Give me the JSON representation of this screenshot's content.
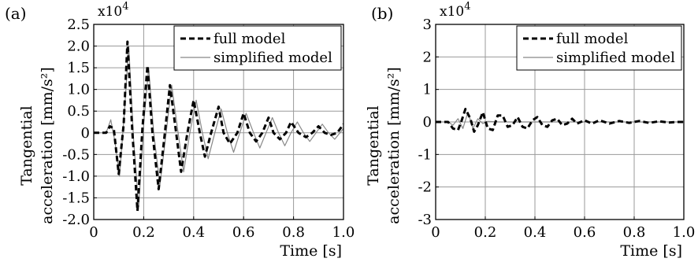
{
  "chart_data": [
    {
      "panel_label": "(a)",
      "type": "line",
      "xlabel": "Time  [s]",
      "ylabel_line1": "Tangential",
      "ylabel_line2": "acceleration  [mm/s²]",
      "multiplier": "x10",
      "multiplier_exp": "4",
      "xlim": [
        0,
        1.0
      ],
      "ylim": [
        -2.0,
        2.5
      ],
      "xticks": [
        0,
        0.2,
        0.4,
        0.6,
        0.8,
        1.0
      ],
      "xtick_labels": [
        "0",
        "0.2",
        "0.4",
        "0.6",
        "0.8",
        "1.0"
      ],
      "yticks": [
        -2.0,
        -1.5,
        -1.0,
        -0.5,
        0,
        0.5,
        1.0,
        1.5,
        2.0,
        2.5
      ],
      "ytick_labels": [
        "-2.0",
        "-1.5",
        "-1.0",
        "-0.5",
        "0",
        "0.5",
        "1.0",
        "1.5",
        "2.0",
        "2.5"
      ],
      "grid": true,
      "legend_position": "top-right",
      "series": [
        {
          "name": "full model",
          "style": "dashed",
          "color": "#000000",
          "x": [
            0,
            0.05,
            0.065,
            0.08,
            0.1,
            0.12,
            0.135,
            0.155,
            0.175,
            0.195,
            0.215,
            0.235,
            0.26,
            0.285,
            0.305,
            0.33,
            0.35,
            0.375,
            0.4,
            0.425,
            0.445,
            0.47,
            0.5,
            0.52,
            0.545,
            0.575,
            0.6,
            0.625,
            0.65,
            0.675,
            0.7,
            0.72,
            0.745,
            0.77,
            0.79,
            0.82,
            0.85,
            0.875,
            0.9,
            0.925,
            0.95,
            0.975,
            1.0
          ],
          "y": [
            0,
            0,
            0.15,
            0.1,
            -0.95,
            0.2,
            2.1,
            0.0,
            -1.8,
            0.1,
            1.55,
            0.0,
            -1.3,
            0.0,
            1.1,
            0.0,
            -0.9,
            0.0,
            0.75,
            0.0,
            -0.55,
            0.0,
            0.6,
            0.0,
            -0.25,
            0.0,
            0.45,
            0.0,
            -0.2,
            0.0,
            0.35,
            0.0,
            -0.15,
            0.0,
            0.25,
            0.0,
            -0.1,
            0.0,
            0.15,
            0.0,
            -0.05,
            0.0,
            0.2
          ]
        },
        {
          "name": "simplified model",
          "style": "solid",
          "color": "#888888",
          "x": [
            0,
            0.05,
            0.068,
            0.085,
            0.103,
            0.123,
            0.14,
            0.16,
            0.18,
            0.2,
            0.22,
            0.24,
            0.265,
            0.29,
            0.312,
            0.338,
            0.36,
            0.385,
            0.41,
            0.435,
            0.458,
            0.485,
            0.51,
            0.535,
            0.56,
            0.585,
            0.61,
            0.64,
            0.665,
            0.69,
            0.715,
            0.74,
            0.765,
            0.79,
            0.815,
            0.84,
            0.865,
            0.89,
            0.915,
            0.94,
            0.965,
            1.0
          ],
          "y": [
            0,
            0,
            0.3,
            -0.2,
            -1.0,
            0.5,
            2.0,
            -0.2,
            -1.7,
            0.2,
            1.5,
            0.0,
            -1.2,
            0.0,
            1.1,
            0.0,
            -0.9,
            0.0,
            0.75,
            0.0,
            -0.6,
            0.0,
            0.55,
            0.0,
            -0.45,
            0.0,
            0.45,
            0.0,
            -0.35,
            0.0,
            0.35,
            0.0,
            -0.3,
            0.0,
            0.25,
            0.0,
            -0.2,
            0.0,
            0.2,
            0.0,
            -0.15,
            0.1
          ]
        }
      ]
    },
    {
      "panel_label": "(b)",
      "type": "line",
      "xlabel": "Time  [s]",
      "ylabel_line1": "Tangential",
      "ylabel_line2": "acceleration  [mm/s²]",
      "multiplier": "x10",
      "multiplier_exp": "4",
      "xlim": [
        0,
        1.0
      ],
      "ylim": [
        -3,
        3
      ],
      "xticks": [
        0,
        0.2,
        0.4,
        0.6,
        0.8,
        1.0
      ],
      "xtick_labels": [
        "0",
        "0.2",
        "0.4",
        "0.6",
        "0.8",
        "1.0"
      ],
      "yticks": [
        -3,
        -2,
        -1,
        0,
        1,
        2,
        3
      ],
      "ytick_labels": [
        "-3",
        "-2",
        "-1",
        "0",
        "1",
        "2",
        "3"
      ],
      "grid": true,
      "legend_position": "top-right",
      "series": [
        {
          "name": "full model",
          "style": "dashed",
          "color": "#000000",
          "x": [
            0,
            0.05,
            0.07,
            0.09,
            0.105,
            0.12,
            0.14,
            0.155,
            0.17,
            0.19,
            0.21,
            0.23,
            0.25,
            0.27,
            0.29,
            0.31,
            0.33,
            0.35,
            0.37,
            0.39,
            0.41,
            0.43,
            0.45,
            0.47,
            0.49,
            0.51,
            0.53,
            0.55,
            0.57,
            0.6,
            0.63,
            0.66,
            0.7,
            0.74,
            0.78,
            0.82,
            0.86,
            0.9,
            0.94,
            0.97,
            1.0
          ],
          "y": [
            0,
            0,
            -0.2,
            -0.25,
            0.05,
            0.4,
            0.1,
            -0.3,
            -0.1,
            0.3,
            -0.2,
            -0.25,
            0.2,
            0.2,
            -0.15,
            -0.1,
            0.15,
            -0.15,
            -0.2,
            0.05,
            0.15,
            -0.1,
            -0.15,
            0.05,
            0.1,
            -0.1,
            -0.05,
            0.1,
            -0.05,
            0.05,
            -0.05,
            0.05,
            -0.05,
            0.03,
            -0.03,
            0.03,
            -0.03,
            0.02,
            -0.02,
            0.0,
            0.0
          ]
        },
        {
          "name": "simplified model",
          "style": "solid",
          "color": "#888888",
          "x": [
            0,
            0.05,
            0.07,
            0.09,
            0.11,
            0.13,
            0.15,
            0.17,
            0.19,
            0.21,
            0.25,
            0.3,
            0.4,
            0.5,
            0.6,
            0.7,
            0.8,
            0.9,
            1.0
          ],
          "y": [
            0,
            0,
            -0.1,
            0.1,
            -0.2,
            0.3,
            -0.2,
            0.1,
            -0.05,
            0.02,
            0,
            0,
            0,
            0,
            0,
            0,
            0,
            0,
            0
          ]
        }
      ]
    }
  ]
}
